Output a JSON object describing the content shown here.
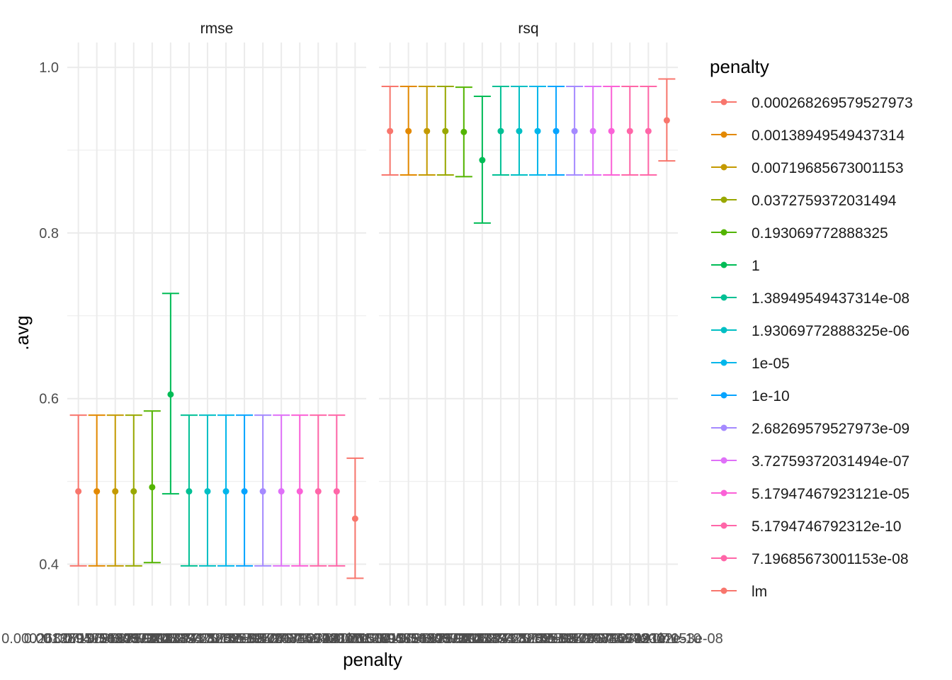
{
  "chart_data": {
    "type": "scatter",
    "xlabel": "penalty",
    "ylabel": ".avg",
    "ylim": [
      0.35,
      1.03
    ],
    "y_ticks": [
      "0.4",
      "0.6",
      "0.8",
      "1.0"
    ],
    "y_tick_values": [
      0.4,
      0.6,
      0.8,
      1.0
    ],
    "grid": true,
    "legend": {
      "title": "penalty",
      "placement": "right"
    },
    "categories": [
      "0.000268269579527973",
      "0.00138949549437314",
      "0.00719685673001153",
      "0.0372759372031494",
      "0.193069772888325",
      "1",
      "1.38949549437314e-08",
      "1.93069772888325e-06",
      "1e-05",
      "1e-10",
      "2.68269579527973e-09",
      "3.72759372031494e-07",
      "5.17947467923121e-05",
      "5.1794746792312e-10",
      "7.19685673001153e-08",
      "lm"
    ],
    "colors": [
      "#F8766D",
      "#E38900",
      "#C49A00",
      "#99A800",
      "#53B400",
      "#00BC56",
      "#00C094",
      "#00BFC4",
      "#00B6EB",
      "#06A4FF",
      "#A58AFF",
      "#DF70F8",
      "#FB61D7",
      "#FF66A8",
      "#FF66A8",
      "#F8766D"
    ],
    "panels": [
      {
        "strip": "rmse",
        "mean": [
          0.488,
          0.488,
          0.488,
          0.488,
          0.493,
          0.605,
          0.488,
          0.488,
          0.488,
          0.488,
          0.488,
          0.488,
          0.488,
          0.488,
          0.488,
          0.455
        ],
        "lower": [
          0.398,
          0.398,
          0.398,
          0.398,
          0.402,
          0.485,
          0.398,
          0.398,
          0.398,
          0.398,
          0.398,
          0.398,
          0.398,
          0.398,
          0.398,
          0.383
        ],
        "upper": [
          0.58,
          0.58,
          0.58,
          0.58,
          0.585,
          0.727,
          0.58,
          0.58,
          0.58,
          0.58,
          0.58,
          0.58,
          0.58,
          0.58,
          0.58,
          0.528
        ]
      },
      {
        "strip": "rsq",
        "mean": [
          0.923,
          0.923,
          0.923,
          0.923,
          0.922,
          0.888,
          0.923,
          0.923,
          0.923,
          0.923,
          0.923,
          0.923,
          0.923,
          0.923,
          0.923,
          0.936
        ],
        "lower": [
          0.87,
          0.87,
          0.87,
          0.87,
          0.868,
          0.812,
          0.87,
          0.87,
          0.87,
          0.87,
          0.87,
          0.87,
          0.87,
          0.87,
          0.87,
          0.887
        ],
        "upper": [
          0.977,
          0.977,
          0.977,
          0.977,
          0.976,
          0.965,
          0.977,
          0.977,
          0.977,
          0.977,
          0.977,
          0.977,
          0.977,
          0.977,
          0.977,
          0.986
        ]
      }
    ]
  }
}
